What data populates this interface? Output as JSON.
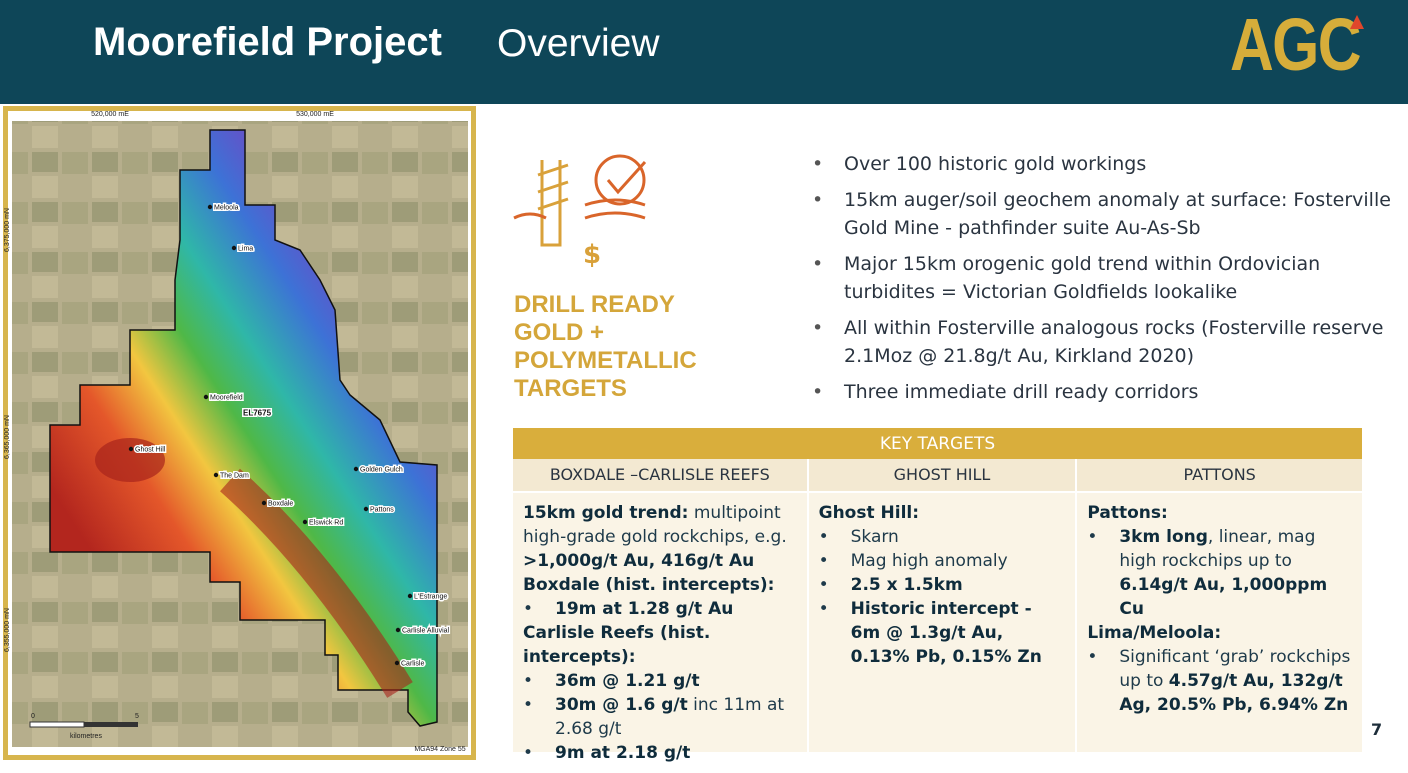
{
  "header": {
    "title": "Moorefield Project",
    "subtitle": "Overview",
    "logo": "AGC"
  },
  "map": {
    "grid_labels": [
      "520,000 mE",
      "530,000 mE",
      "6,375,000 mN",
      "6,365,000 mN",
      "6,355,000 mN"
    ],
    "places": [
      "Meloola",
      "Lima",
      "Moorefield",
      "EL7675",
      "Ghost Hill",
      "The Dam",
      "Golden Gulch",
      "Boxdale",
      "Elswick Rd",
      "Pattons",
      "L'Estrange",
      "Carlisle Alluvial",
      "Carlisle"
    ],
    "scale": [
      "0",
      "5",
      "kilometres",
      "MGA94 Zone 55"
    ]
  },
  "headline": [
    "DRILL READY",
    "GOLD +",
    "POLYMETALLIC",
    "TARGETS"
  ],
  "bullets": [
    "Over 100 historic gold workings",
    "15km auger/soil geochem anomaly at surface: Fosterville Gold Mine - pathfinder suite Au-As-Sb",
    "Major 15km orogenic gold trend within Ordovician turbidites = Victorian Goldfields lookalike",
    "All within Fosterville analogous rocks (Fosterville reserve 2.1Moz @ 21.8g/t Au, Kirkland 2020)",
    "Three immediate drill ready corridors"
  ],
  "table": {
    "title": "KEY TARGETS",
    "columns": [
      {
        "heading": "BOXDALE –CARLISLE REEFS",
        "paragraphs": [
          {
            "bullet": false,
            "parts": [
              {
                "text": "15km gold trend:",
                "bold": true
              },
              {
                "text": " multipoint high-grade gold rockchips, e.g. ",
                "bold": false
              },
              {
                "text": ">1,000g/t Au, 416g/t Au",
                "bold": true
              }
            ]
          },
          {
            "bullet": false,
            "parts": [
              {
                "text": "Boxdale (hist. intercepts):",
                "bold": true
              }
            ]
          },
          {
            "bullet": true,
            "parts": [
              {
                "text": "19m at 1.28 g/t Au",
                "bold": true
              }
            ]
          },
          {
            "bullet": false,
            "parts": [
              {
                "text": "Carlisle Reefs (hist. intercepts):",
                "bold": true
              }
            ]
          },
          {
            "bullet": true,
            "parts": [
              {
                "text": "36m @ 1.21 g/t",
                "bold": true
              }
            ]
          },
          {
            "bullet": true,
            "parts": [
              {
                "text": "30m @ 1.6 g/t",
                "bold": true
              },
              {
                "text": " inc 11m at 2.68 g/t",
                "bold": false
              }
            ]
          },
          {
            "bullet": true,
            "parts": [
              {
                "text": "9m at 2.18 g/t",
                "bold": true
              }
            ]
          }
        ]
      },
      {
        "heading": "GHOST HILL",
        "paragraphs": [
          {
            "bullet": false,
            "parts": [
              {
                "text": "Ghost Hill:",
                "bold": true
              }
            ]
          },
          {
            "bullet": true,
            "parts": [
              {
                "text": "Skarn",
                "bold": false
              }
            ]
          },
          {
            "bullet": true,
            "parts": [
              {
                "text": "Mag high anomaly",
                "bold": false
              }
            ]
          },
          {
            "bullet": true,
            "parts": [
              {
                "text": "2.5 x 1.5km",
                "bold": true
              }
            ]
          },
          {
            "bullet": true,
            "parts": [
              {
                "text": "Historic intercept - 6m @ 1.3g/t Au, 0.13% Pb, 0.15% Zn",
                "bold": true
              }
            ]
          }
        ]
      },
      {
        "heading": "PATTONS",
        "paragraphs": [
          {
            "bullet": false,
            "parts": [
              {
                "text": "Pattons:",
                "bold": true
              }
            ]
          },
          {
            "bullet": true,
            "parts": [
              {
                "text": "3km long",
                "bold": true
              },
              {
                "text": ", linear, mag high rockchips up to ",
                "bold": false
              },
              {
                "text": "6.14g/t Au, 1,000ppm Cu",
                "bold": true
              }
            ]
          },
          {
            "bullet": false,
            "parts": [
              {
                "text": "Lima/Meloola:",
                "bold": true
              }
            ]
          },
          {
            "bullet": true,
            "parts": [
              {
                "text": "Significant ‘grab’ rockchips up to ",
                "bold": false
              },
              {
                "text": "4.57g/t Au, 132g/t Ag, 20.5% Pb, 6.94% Zn",
                "bold": true
              }
            ]
          }
        ]
      }
    ]
  },
  "page_number": "7"
}
